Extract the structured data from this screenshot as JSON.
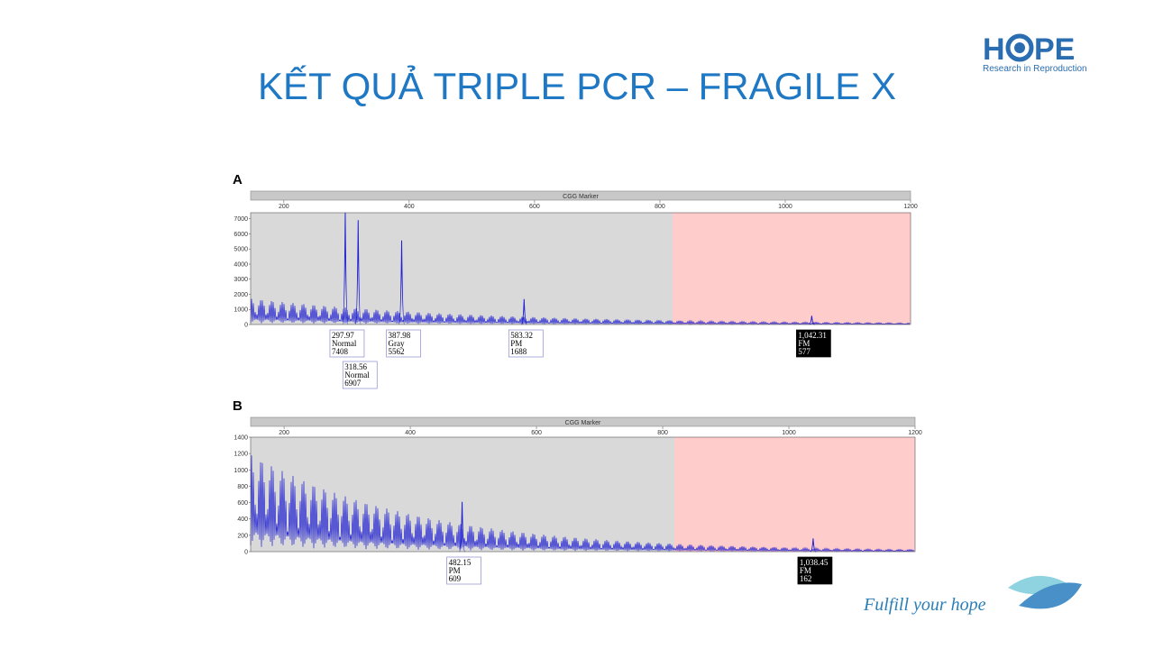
{
  "header": {
    "title": "KẾT QUẢ TRIPLE PCR – FRAGILE X",
    "logo_h": "H",
    "logo_pe": "PE",
    "logo_tagline": "Research in Reproduction"
  },
  "footer": {
    "slogan": "Fulfill your hope"
  },
  "chart_data": [
    {
      "type": "line",
      "panel_label": "A",
      "marker_label": "CGG Marker",
      "xlim": [
        147,
        1200
      ],
      "xticks": [
        200,
        400,
        600,
        800,
        1000,
        1200
      ],
      "ylim": [
        0,
        7400
      ],
      "yticks": [
        0,
        1000,
        2000,
        3000,
        4000,
        5000,
        6000,
        7000
      ],
      "color": "#2020d0",
      "peaks": {
        "x": [
          297.97,
          318.56,
          387.98,
          583.32,
          {
            "value": 1042.31,
            "label": "1,042.31"
          }
        ],
        "categories": [
          "Normal",
          "Normal",
          "Gray",
          "PM",
          "FM"
        ],
        "values": [
          7408,
          6907,
          5562,
          1688,
          577
        ]
      }
    },
    {
      "type": "line",
      "panel_label": "B",
      "marker_label": "CGG Marker",
      "xlim": [
        147,
        1200
      ],
      "xticks": [
        200,
        400,
        600,
        800,
        1000,
        1200
      ],
      "ylim": [
        0,
        1400
      ],
      "yticks": [
        0,
        200,
        400,
        600,
        800,
        1000,
        1200,
        1400
      ],
      "color": "#2020d0",
      "peaks": {
        "x": [
          482.15,
          {
            "value": 1038.45,
            "label": "1,038.45"
          }
        ],
        "categories": [
          "PM",
          "FM"
        ],
        "values": [
          609,
          162
        ]
      }
    }
  ]
}
